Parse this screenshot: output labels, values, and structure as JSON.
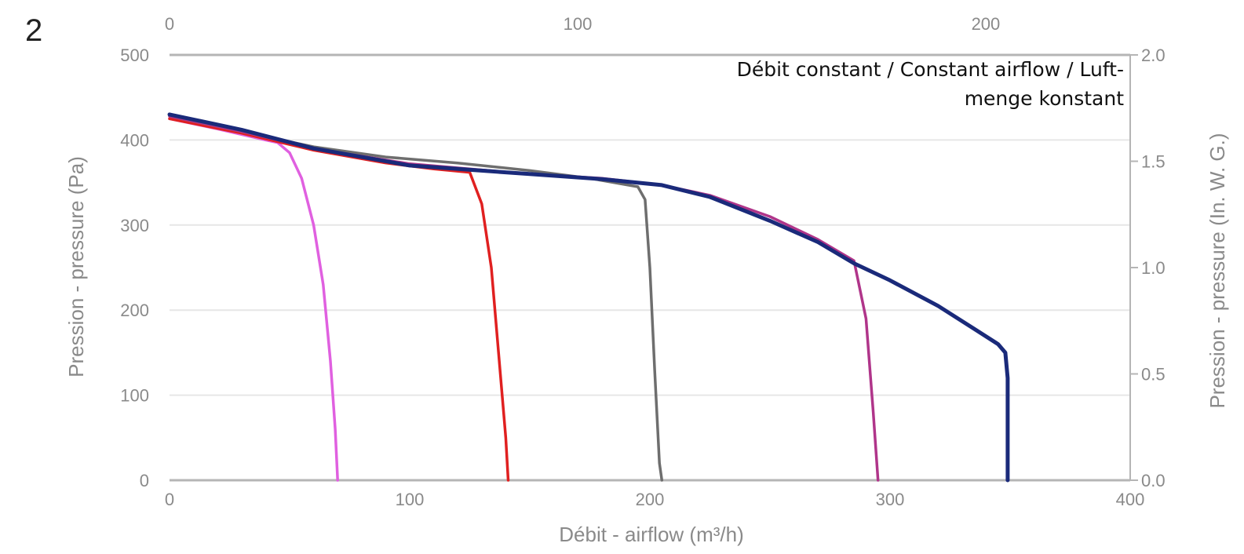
{
  "panel_label": "2",
  "chart_data": {
    "type": "line",
    "annotation": [
      "Débit constant / Constant airflow / Luft-",
      "menge konstant"
    ],
    "xlabel": "Débit - airflow (m³/h)",
    "ylabel": "Pression - pressure (Pa)",
    "y2label": "Pression - pressure (In. W. G.)",
    "xlim": [
      0,
      400
    ],
    "ylim": [
      0,
      500
    ],
    "x2lim": [
      0,
      235.4
    ],
    "y2lim": [
      0,
      2.0
    ],
    "xticks": [
      0,
      100,
      200,
      300,
      400
    ],
    "yticks": [
      0,
      100,
      200,
      300,
      400,
      500
    ],
    "x2ticks": [
      0,
      100,
      200
    ],
    "y2ticks": [
      "0.0",
      "0.5",
      "1.0",
      "1.5",
      "2.0"
    ],
    "grid": "horizontal",
    "legend": "none",
    "series": [
      {
        "color": "#e060e0",
        "points": [
          [
            0,
            425
          ],
          [
            20,
            413
          ],
          [
            40,
            400
          ],
          [
            45,
            397
          ],
          [
            50,
            385
          ],
          [
            55,
            355
          ],
          [
            60,
            300
          ],
          [
            64,
            230
          ],
          [
            67,
            140
          ],
          [
            69,
            60
          ],
          [
            70,
            0
          ]
        ]
      },
      {
        "color": "#e02020",
        "points": [
          [
            0,
            425
          ],
          [
            30,
            408
          ],
          [
            60,
            388
          ],
          [
            90,
            373
          ],
          [
            110,
            366
          ],
          [
            125,
            362
          ],
          [
            130,
            325
          ],
          [
            134,
            250
          ],
          [
            137,
            150
          ],
          [
            140,
            50
          ],
          [
            141,
            0
          ]
        ]
      },
      {
        "color": "#6e6e6e",
        "points": [
          [
            0,
            428
          ],
          [
            30,
            410
          ],
          [
            60,
            392
          ],
          [
            90,
            380
          ],
          [
            120,
            373
          ],
          [
            150,
            364
          ],
          [
            175,
            355
          ],
          [
            195,
            345
          ],
          [
            198,
            330
          ],
          [
            200,
            250
          ],
          [
            202,
            130
          ],
          [
            204,
            20
          ],
          [
            205,
            0
          ]
        ]
      },
      {
        "color": "#b0358a",
        "points": [
          [
            0,
            428
          ],
          [
            30,
            410
          ],
          [
            60,
            390
          ],
          [
            100,
            372
          ],
          [
            150,
            360
          ],
          [
            180,
            355
          ],
          [
            205,
            347
          ],
          [
            225,
            335
          ],
          [
            250,
            310
          ],
          [
            270,
            283
          ],
          [
            285,
            258
          ],
          [
            290,
            190
          ],
          [
            293,
            80
          ],
          [
            295,
            0
          ]
        ]
      },
      {
        "color": "#1a2a7a",
        "points": [
          [
            0,
            430
          ],
          [
            30,
            412
          ],
          [
            60,
            390
          ],
          [
            100,
            370
          ],
          [
            150,
            360
          ],
          [
            180,
            354
          ],
          [
            205,
            347
          ],
          [
            225,
            333
          ],
          [
            250,
            305
          ],
          [
            270,
            280
          ],
          [
            285,
            255
          ],
          [
            300,
            235
          ],
          [
            320,
            205
          ],
          [
            335,
            178
          ],
          [
            345,
            160
          ],
          [
            348,
            150
          ],
          [
            349,
            120
          ],
          [
            349,
            50
          ],
          [
            349,
            0
          ]
        ]
      }
    ]
  }
}
